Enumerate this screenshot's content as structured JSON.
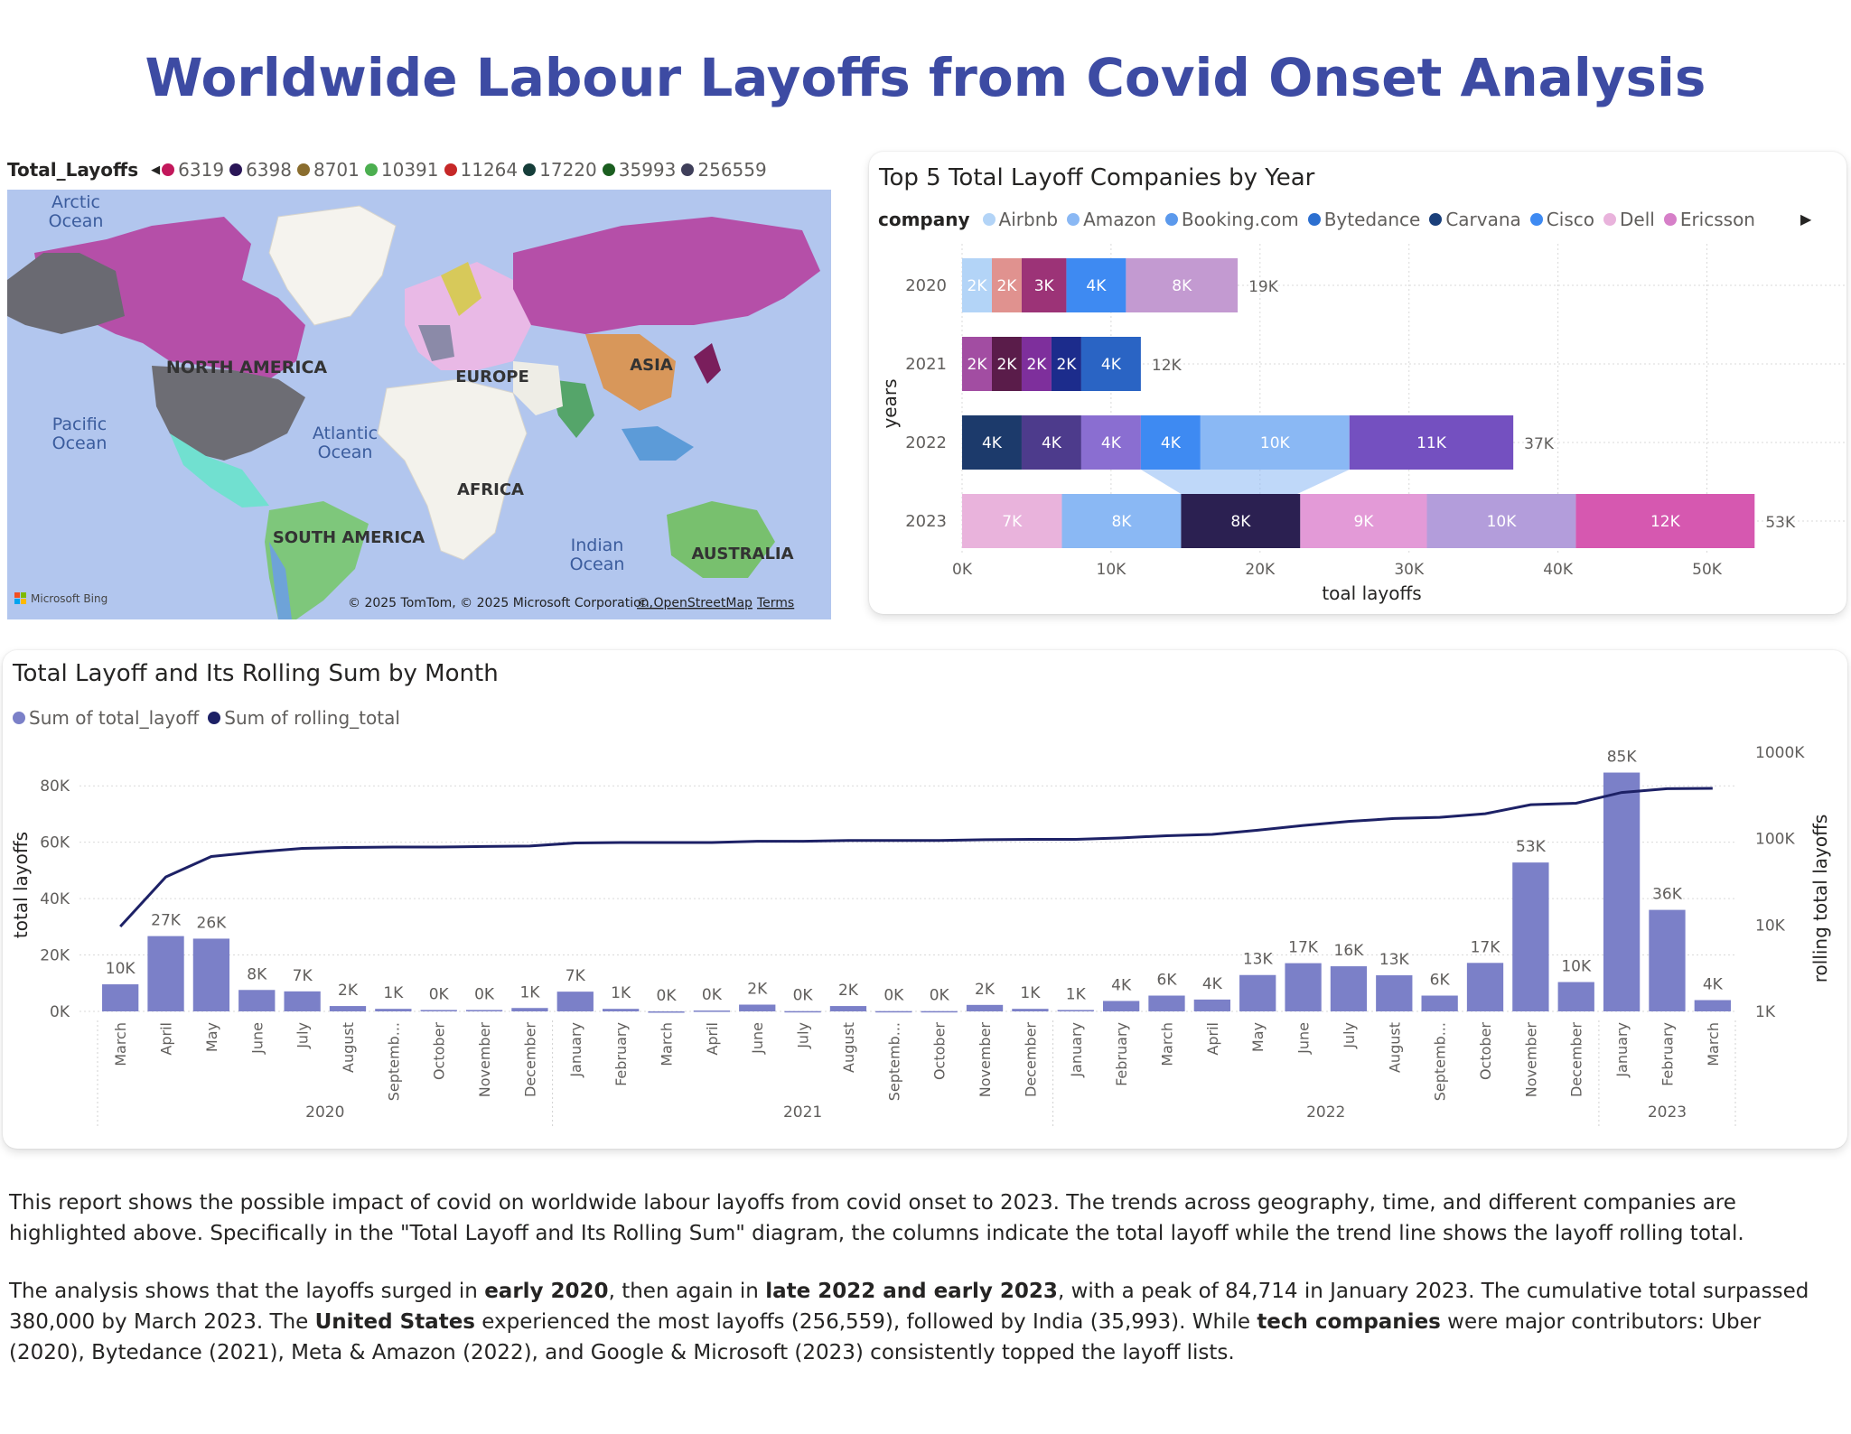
{
  "title": "Worldwide Labour Layoffs from Covid Onset Analysis",
  "colors": {
    "title": "#3d4ba3",
    "bar": "#7b80c8",
    "line": "#1d2166",
    "ocean": "#b2c6ee"
  },
  "map": {
    "legend_title": "Total_Layoffs",
    "legend": [
      {
        "label": "6319",
        "color": "#c2185b"
      },
      {
        "label": "6398",
        "color": "#2a1657"
      },
      {
        "label": "8701",
        "color": "#8a6d2e"
      },
      {
        "label": "10391",
        "color": "#4caf50"
      },
      {
        "label": "11264",
        "color": "#c62828"
      },
      {
        "label": "17220",
        "color": "#163e3a"
      },
      {
        "label": "35993",
        "color": "#1b5e20"
      },
      {
        "label": "256559",
        "color": "#3f3f5a"
      }
    ],
    "labels": {
      "arctic": "Arctic\nOcean",
      "north_america": "NORTH AMERICA",
      "europe": "EUROPE",
      "asia": "ASIA",
      "pacific": "Pacific\nOcean",
      "atlantic": "Atlantic\nOcean",
      "africa": "AFRICA",
      "south_america": "SOUTH AMERICA",
      "indian": "Indian\nOcean",
      "australia": "AUSTRALIA"
    },
    "brand": "Microsoft Bing",
    "attribution": "© 2025 TomTom, © 2025 Microsoft Corporation,",
    "osm": "© OpenStreetMap",
    "terms": "Terms"
  },
  "chart_data": [
    {
      "type": "bar",
      "orientation": "horizontal-stacked",
      "title": "Top 5 Total Layoff Companies by Year",
      "legend_title": "company",
      "legend": [
        {
          "name": "Airbnb",
          "color": "#b3d4f7"
        },
        {
          "name": "Amazon",
          "color": "#8ab8f4"
        },
        {
          "name": "Booking.com",
          "color": "#5b99ec"
        },
        {
          "name": "Bytedance",
          "color": "#2c6fd0"
        },
        {
          "name": "Carvana",
          "color": "#1a3f7a"
        },
        {
          "name": "Cisco",
          "color": "#3e8af2"
        },
        {
          "name": "Dell",
          "color": "#e9b3dc"
        },
        {
          "name": "Ericsson",
          "color": "#d67fc8"
        }
      ],
      "categories": [
        "2020",
        "2021",
        "2022",
        "2023"
      ],
      "rows": [
        {
          "year": "2020",
          "total": "19K",
          "segments": [
            {
              "value": 2,
              "label": "2K",
              "color": "#b3d4f7"
            },
            {
              "value": 2,
              "label": "2K",
              "color": "#e0928f"
            },
            {
              "value": 3,
              "label": "3K",
              "color": "#9c3377"
            },
            {
              "value": 4,
              "label": "4K",
              "color": "#3e8af2"
            },
            {
              "value": 7.5,
              "label": "8K",
              "color": "#c39ad1"
            }
          ]
        },
        {
          "year": "2021",
          "total": "12K",
          "segments": [
            {
              "value": 2,
              "label": "2K",
              "color": "#a24da2"
            },
            {
              "value": 2,
              "label": "2K",
              "color": "#5a1c4a"
            },
            {
              "value": 2,
              "label": "2K",
              "color": "#7e2f9c"
            },
            {
              "value": 2,
              "label": "2K",
              "color": "#1c2c8c"
            },
            {
              "value": 4,
              "label": "4K",
              "color": "#2a64c4"
            }
          ]
        },
        {
          "year": "2022",
          "total": "37K",
          "segments": [
            {
              "value": 4,
              "label": "4K",
              "color": "#1c3a6b"
            },
            {
              "value": 4,
              "label": "4K",
              "color": "#4d3b8c"
            },
            {
              "value": 4,
              "label": "4K",
              "color": "#8a6ed1"
            },
            {
              "value": 4,
              "label": "4K",
              "color": "#3e8af2"
            },
            {
              "value": 10,
              "label": "10K",
              "color": "#8ab8f4"
            },
            {
              "value": 11,
              "label": "11K",
              "color": "#7450c0"
            }
          ]
        },
        {
          "year": "2023",
          "total": "53K",
          "segments": [
            {
              "value": 6.7,
              "label": "7K",
              "color": "#e9b3dc"
            },
            {
              "value": 8,
              "label": "8K",
              "color": "#8ab8f4"
            },
            {
              "value": 8,
              "label": "8K",
              "color": "#2b2051"
            },
            {
              "value": 8.5,
              "label": "9K",
              "color": "#e39ad7"
            },
            {
              "value": 10,
              "label": "10K",
              "color": "#b39ddb"
            },
            {
              "value": 12,
              "label": "12K",
              "color": "#d658b0"
            }
          ]
        }
      ],
      "xlabel": "toal layoffs",
      "ylabel": "years",
      "xticks": [
        "0K",
        "10K",
        "20K",
        "30K",
        "40K",
        "50K"
      ],
      "xlim": [
        0,
        55
      ]
    },
    {
      "type": "bar",
      "title": "Total Layoff and Its Rolling Sum by Month",
      "series": [
        {
          "name": "Sum of total_layoff",
          "color": "#7b80c8"
        },
        {
          "name": "Sum of rolling_total",
          "color": "#1d2166"
        }
      ],
      "categories": [
        "March",
        "April",
        "May",
        "June",
        "July",
        "August",
        "Septemb...",
        "October",
        "November",
        "December",
        "January",
        "February",
        "March",
        "April",
        "June",
        "July",
        "August",
        "Septemb...",
        "October",
        "November",
        "December",
        "January",
        "February",
        "March",
        "April",
        "May",
        "June",
        "July",
        "August",
        "Septemb...",
        "October",
        "November",
        "December",
        "January",
        "February",
        "March"
      ],
      "values": [
        9.6,
        26.7,
        25.8,
        7.6,
        7.1,
        1.9,
        0.9,
        0.5,
        0.5,
        1.2,
        7.0,
        0.9,
        0.0,
        0.3,
        2.4,
        0.1,
        1.9,
        0.1,
        0.1,
        2.3,
        0.9,
        0.5,
        3.7,
        5.6,
        4.2,
        12.9,
        17.1,
        16.0,
        12.8,
        5.6,
        17.2,
        52.8,
        10.4,
        84.7,
        36.0,
        4.0
      ],
      "value_labels": [
        "10K",
        "27K",
        "26K",
        "8K",
        "7K",
        "2K",
        "1K",
        "0K",
        "0K",
        "1K",
        "7K",
        "1K",
        "0K",
        "0K",
        "2K",
        "0K",
        "2K",
        "0K",
        "0K",
        "2K",
        "1K",
        "1K",
        "4K",
        "6K",
        "4K",
        "13K",
        "17K",
        "16K",
        "13K",
        "6K",
        "17K",
        "53K",
        "10K",
        "85K",
        "36K",
        "4K"
      ],
      "rolling_total": [
        9.6,
        36,
        62,
        70,
        77,
        79,
        80,
        80,
        81,
        82,
        89,
        90,
        90,
        90,
        93,
        93,
        95,
        95,
        95,
        97,
        98,
        98,
        102,
        108,
        112,
        125,
        142,
        158,
        171,
        176,
        194,
        247,
        257,
        342,
        378,
        382
      ],
      "years": [
        {
          "label": "2020",
          "from": 0,
          "to": 9
        },
        {
          "label": "2021",
          "from": 10,
          "to": 20
        },
        {
          "label": "2022",
          "from": 21,
          "to": 32
        },
        {
          "label": "2023",
          "from": 33,
          "to": 35
        }
      ],
      "ylabel": "total layoffs",
      "y2label": "rolling total layoffs",
      "yticks": [
        "0K",
        "20K",
        "40K",
        "60K",
        "80K"
      ],
      "ylim": [
        0,
        98
      ],
      "y2ticks": [
        "1K",
        "10K",
        "100K",
        "1000K"
      ],
      "y2scale": "log"
    }
  ],
  "notes": {
    "p1": "This report shows the possible impact of covid on worldwide labour layoffs from covid onset to 2023. The trends across geography, time, and different companies are highlighted above. Specifically in the \"Total Layoff and Its Rolling Sum\" diagram, the columns indicate the total layoff while the trend line shows the layoff rolling total.",
    "p2a": "The analysis shows that the layoffs surged in ",
    "p2b": "early 2020",
    "p2c": ", then again in ",
    "p2d": "late 2022 and early 2023",
    "p2e": ", with a peak of 84,714 in January 2023. The cumulative total surpassed 380,000 by March 2023. The ",
    "p2f": "United States",
    "p2g": " experienced the most layoffs (256,559), followed by India (35,993). While ",
    "p2h": "tech companies",
    "p2i": " were major contributors: Uber (2020), Bytedance (2021), Meta & Amazon (2022), and Google & Microsoft (2023) consistently topped the layoff lists."
  }
}
